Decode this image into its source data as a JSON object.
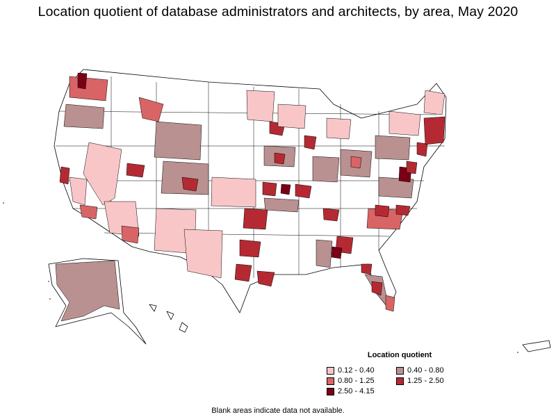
{
  "title": "Location quotient of database administrators and architects, by area, May 2020",
  "legend": {
    "title": "Location quotient",
    "items": [
      {
        "label": "0.12 - 0.40",
        "color": "#f9c6c8"
      },
      {
        "label": "0.40 - 0.80",
        "color": "#b99190"
      },
      {
        "label": "0.80 - 1.25",
        "color": "#d86466"
      },
      {
        "label": "1.25 - 2.50",
        "color": "#b52a32"
      },
      {
        "label": "2.50 - 4.15",
        "color": "#7a0015"
      }
    ]
  },
  "note": "Blank areas indicate data not available."
}
